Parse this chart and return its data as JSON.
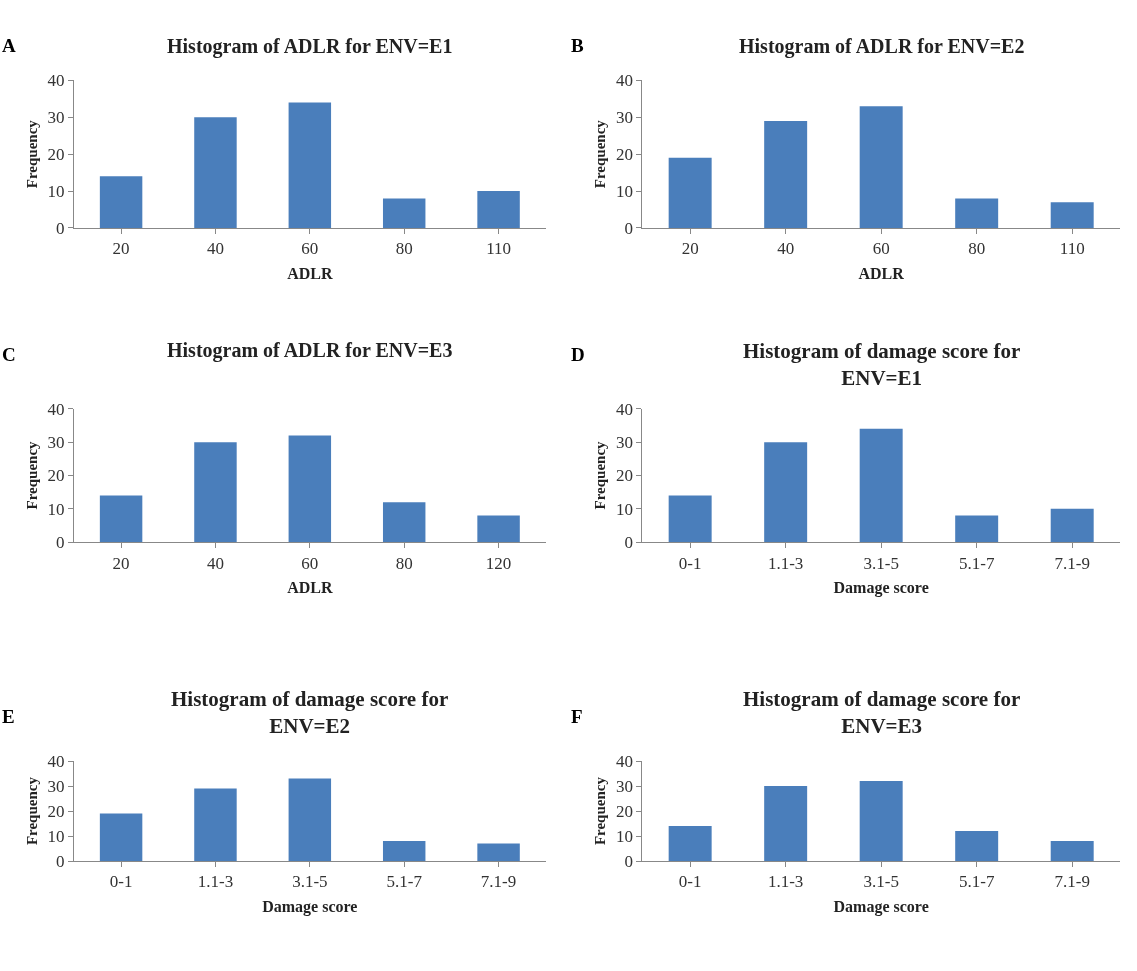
{
  "chart_data": [
    {
      "type": "bar",
      "title": "Histogram of ADLR for ENV=E1",
      "xlabel": "ADLR",
      "ylabel": "Frequency",
      "categories": [
        "20",
        "40",
        "60",
        "80",
        "110"
      ],
      "values": [
        14,
        30,
        34,
        8,
        10
      ],
      "color": "#4a7ebb",
      "ylim": [
        0,
        40
      ],
      "yticks": [
        0,
        10,
        20,
        30,
        40
      ],
      "annotations": [
        "A"
      ]
    },
    {
      "type": "bar",
      "title": "Histogram of ADLR for ENV=E2",
      "xlabel": "ADLR",
      "ylabel": "Frequency",
      "categories": [
        "20",
        "40",
        "60",
        "80",
        "110"
      ],
      "values": [
        19,
        29,
        33,
        8,
        7
      ],
      "color": "#4a7ebb",
      "ylim": [
        0,
        40
      ],
      "yticks": [
        0,
        10,
        20,
        30,
        40
      ],
      "annotations": [
        "B"
      ]
    },
    {
      "type": "bar",
      "title": "Histogram of ADLR for ENV=E3",
      "xlabel": "ADLR",
      "ylabel": "Frequency",
      "categories": [
        "20",
        "40",
        "60",
        "80",
        "120"
      ],
      "values": [
        14,
        30,
        32,
        12,
        8
      ],
      "color": "#4a7ebb",
      "ylim": [
        0,
        40
      ],
      "yticks": [
        0,
        10,
        20,
        30,
        40
      ],
      "annotations": [
        "C"
      ]
    },
    {
      "type": "bar",
      "title": "Histogram of damage score for\nENV=E1",
      "xlabel": "Damage score",
      "ylabel": "Frequency",
      "categories": [
        "0-1",
        "1.1-3",
        "3.1-5",
        "5.1-7",
        "7.1-9"
      ],
      "values": [
        14,
        30,
        34,
        8,
        10
      ],
      "color": "#4a7ebb",
      "ylim": [
        0,
        40
      ],
      "yticks": [
        0,
        10,
        20,
        30,
        40
      ],
      "annotations": [
        "D"
      ]
    },
    {
      "type": "bar",
      "title": "Histogram of damage score for\nENV=E2",
      "xlabel": "Damage score",
      "ylabel": "Frequency",
      "categories": [
        "0-1",
        "1.1-3",
        "3.1-5",
        "5.1-7",
        "7.1-9"
      ],
      "values": [
        19,
        29,
        33,
        8,
        7
      ],
      "color": "#4a7ebb",
      "ylim": [
        0,
        40
      ],
      "yticks": [
        0,
        10,
        20,
        30,
        40
      ],
      "annotations": [
        "E"
      ]
    },
    {
      "type": "bar",
      "title": "Histogram of damage score for\nENV=E3",
      "xlabel": "Damage score",
      "ylabel": "Frequency",
      "categories": [
        "0-1",
        "1.1-3",
        "3.1-5",
        "5.1-7",
        "7.1-9"
      ],
      "values": [
        14,
        30,
        32,
        12,
        8
      ],
      "color": "#4a7ebb",
      "ylim": [
        0,
        40
      ],
      "yticks": [
        0,
        10,
        20,
        30,
        40
      ],
      "annotations": [
        "F"
      ]
    }
  ]
}
